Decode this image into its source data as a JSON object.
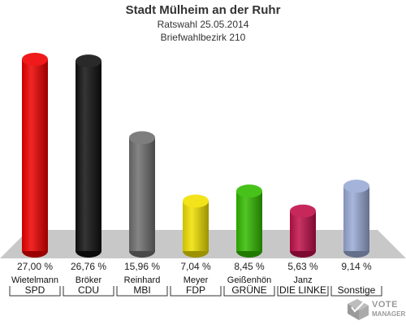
{
  "title": "Stadt Mülheim an der Ruhr",
  "subtitle1": "Ratswahl 25.05.2014",
  "subtitle2": "Briefwahlbezirk 210",
  "logo": {
    "line1": "VOTE",
    "line2": "MANAGER"
  },
  "chart_data": {
    "type": "bar",
    "ylim": [
      0,
      27
    ],
    "categories": [
      "SPD",
      "CDU",
      "MBI",
      "FDP",
      "GRÜNE",
      "DIE LINKE",
      "Sonstige"
    ],
    "candidates": [
      "Wietelmann",
      "Bröker",
      "Reinhard",
      "Meyer",
      "Geißenhön",
      "Janz",
      ""
    ],
    "values": [
      27.0,
      26.76,
      15.96,
      7.04,
      8.45,
      5.63,
      9.14
    ],
    "value_labels": [
      "27,00 %",
      "26,76 %",
      "15,96 %",
      "7,04 %",
      "8,45 %",
      "5,63 %",
      "9,14 %"
    ],
    "colors": [
      "#ee0000",
      "#111111",
      "#707070",
      "#f0e000",
      "#33bb00",
      "#c0104a",
      "#9aaad6"
    ]
  }
}
